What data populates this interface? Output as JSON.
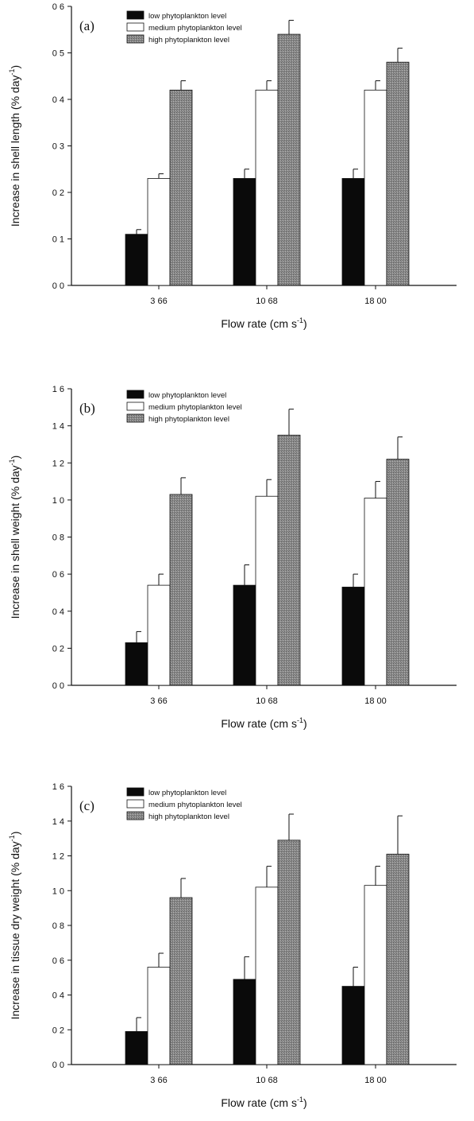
{
  "chart_data": [
    {
      "type": "bar",
      "panel_label": "(a)",
      "categories": [
        "3 66",
        "10 68",
        "18 00"
      ],
      "series": [
        {
          "name": "low phytoplankton level",
          "values": [
            0.11,
            0.23,
            0.23
          ],
          "errors": [
            0.01,
            0.02,
            0.02
          ]
        },
        {
          "name": "medium phytoplankton level",
          "values": [
            0.23,
            0.42,
            0.42
          ],
          "errors": [
            0.01,
            0.02,
            0.02
          ]
        },
        {
          "name": "high phytoplankton level",
          "values": [
            0.42,
            0.54,
            0.48
          ],
          "errors": [
            0.02,
            0.03,
            0.03
          ]
        }
      ],
      "xlabel": "Flow rate (cm s",
      "xlabel_sup": "-1",
      "xlabel_end": ")",
      "ylabel": "Increase in shell length (% day",
      "ylabel_sup": "-1",
      "ylabel_end": ")",
      "ylim": [
        0,
        0.6
      ],
      "yticks": [
        0,
        0.1,
        0.2,
        0.3,
        0.4,
        0.5,
        0.6
      ],
      "ytick_labels": [
        "0 0",
        "0 1",
        "0 2",
        "0 3",
        "0 4",
        "0 5",
        "0 6"
      ],
      "legend_position": "top-left",
      "grid": false
    },
    {
      "type": "bar",
      "panel_label": "(b)",
      "categories": [
        "3 66",
        "10 68",
        "18 00"
      ],
      "series": [
        {
          "name": "low phytoplankton level",
          "values": [
            0.23,
            0.54,
            0.53
          ],
          "errors": [
            0.06,
            0.11,
            0.07
          ]
        },
        {
          "name": "medium phytoplankton level",
          "values": [
            0.54,
            1.02,
            1.01
          ],
          "errors": [
            0.06,
            0.09,
            0.09
          ]
        },
        {
          "name": "high phytoplankton level",
          "values": [
            1.03,
            1.35,
            1.22
          ],
          "errors": [
            0.09,
            0.14,
            0.12
          ]
        }
      ],
      "xlabel": "Flow rate (cm s",
      "xlabel_sup": "-1",
      "xlabel_end": ")",
      "ylabel": "Increase in shell weight (% day",
      "ylabel_sup": "-1",
      "ylabel_end": ")",
      "ylim": [
        0,
        1.6
      ],
      "yticks": [
        0,
        0.2,
        0.4,
        0.6,
        0.8,
        1.0,
        1.2,
        1.4,
        1.6
      ],
      "ytick_labels": [
        "0 0",
        "0 2",
        "0 4",
        "0 6",
        "0 8",
        "1 0",
        "1 2",
        "1 4",
        "1 6"
      ],
      "legend_position": "top-left",
      "grid": false
    },
    {
      "type": "bar",
      "panel_label": "(c)",
      "categories": [
        "3 66",
        "10 68",
        "18 00"
      ],
      "series": [
        {
          "name": "low phytoplankton level",
          "values": [
            0.19,
            0.49,
            0.45
          ],
          "errors": [
            0.08,
            0.13,
            0.11
          ]
        },
        {
          "name": "medium phytoplankton level",
          "values": [
            0.56,
            1.02,
            1.03
          ],
          "errors": [
            0.08,
            0.12,
            0.11
          ]
        },
        {
          "name": "high phytoplankton level",
          "values": [
            0.96,
            1.29,
            1.21
          ],
          "errors": [
            0.11,
            0.15,
            0.22
          ]
        }
      ],
      "xlabel": "Flow rate (cm s",
      "xlabel_sup": "-1",
      "xlabel_end": ")",
      "ylabel": "Increase in tissue dry weight (% day",
      "ylabel_sup": "-1",
      "ylabel_end": ")",
      "ylim": [
        0,
        1.6
      ],
      "yticks": [
        0,
        0.2,
        0.4,
        0.6,
        0.8,
        1.0,
        1.2,
        1.4,
        1.6
      ],
      "ytick_labels": [
        "0 0",
        "0 2",
        "0 4",
        "0 6",
        "0 8",
        "1 0",
        "1 2",
        "1 4",
        "1 6"
      ],
      "legend_position": "top-left",
      "grid": false
    }
  ],
  "colors": {
    "low": "#0a0a0a",
    "medium": "#ffffff",
    "high": "#8c8c8c",
    "high_pattern": "#5e5e5e",
    "axis": "#111111"
  }
}
